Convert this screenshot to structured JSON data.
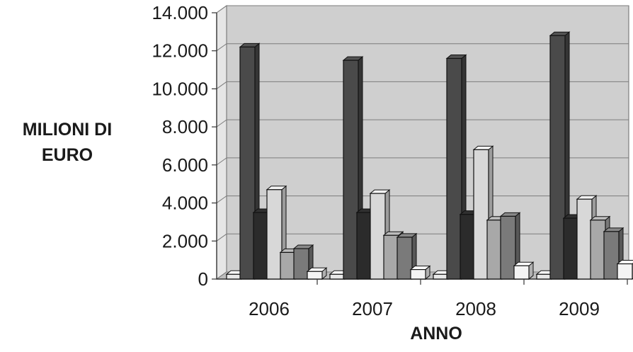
{
  "chart_data": {
    "type": "bar",
    "title": "",
    "xlabel": "ANNO",
    "ylabel_lines": [
      "MILIONI DI",
      "EURO"
    ],
    "categories": [
      "2006",
      "2007",
      "2008",
      "2009"
    ],
    "ylim": [
      0,
      14000
    ],
    "yticks": [
      "0",
      "2.000",
      "4.000",
      "6.000",
      "8.000",
      "10.000",
      "12.000",
      "14.000"
    ],
    "grid": true,
    "style": "3d-clustered",
    "series": [
      {
        "values": [
          250,
          250,
          250,
          250
        ],
        "color": "#e8e8e8"
      },
      {
        "values": [
          12200,
          11500,
          11600,
          12800
        ],
        "color": "#4a4a4a"
      },
      {
        "values": [
          3500,
          3500,
          3400,
          3200
        ],
        "color": "#2b2b2b"
      },
      {
        "values": [
          4700,
          4500,
          6800,
          4200
        ],
        "color": "#d8d8d8"
      },
      {
        "values": [
          1400,
          2300,
          3100,
          3100
        ],
        "color": "#a8a8a8"
      },
      {
        "values": [
          1600,
          2200,
          3300,
          2500
        ],
        "color": "#7a7a7a"
      },
      {
        "values": [
          400,
          500,
          700,
          800
        ],
        "color": "#f4f4f4"
      }
    ]
  }
}
